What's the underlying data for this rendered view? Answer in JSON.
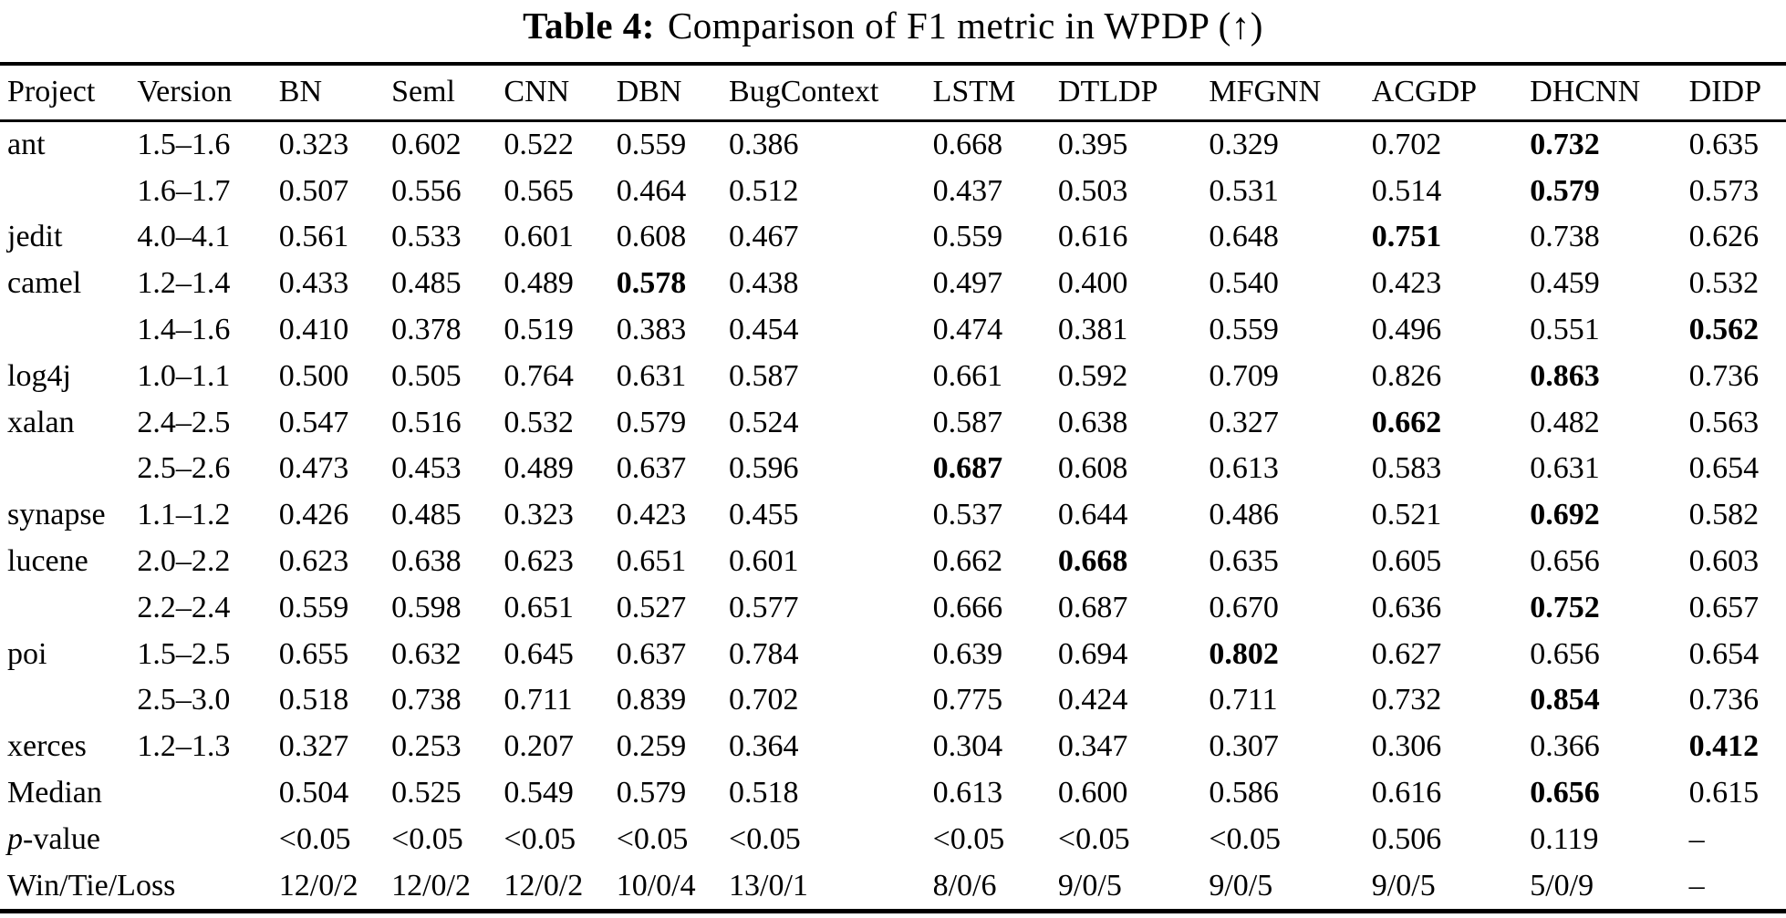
{
  "caption": {
    "label": "Table 4:",
    "text": "Comparison of F1 metric in WPDP (↑)"
  },
  "chart_data": {
    "type": "table",
    "title": "Comparison of F1 metric in WPDP (↑)",
    "columns": [
      "Project",
      "Version",
      "BN",
      "Seml",
      "CNN",
      "DBN",
      "BugContext",
      "LSTM",
      "DTLDP",
      "MFGNN",
      "ACGDP",
      "DHCNN",
      "DIDP"
    ],
    "rows": [
      {
        "project": "ant",
        "version": "1.5–1.6",
        "values": [
          "0.323",
          "0.602",
          "0.522",
          "0.559",
          "0.386",
          "0.668",
          "0.395",
          "0.329",
          "0.702",
          "0.732",
          "0.635"
        ],
        "bold": [
          9
        ]
      },
      {
        "project": "",
        "version": "1.6–1.7",
        "values": [
          "0.507",
          "0.556",
          "0.565",
          "0.464",
          "0.512",
          "0.437",
          "0.503",
          "0.531",
          "0.514",
          "0.579",
          "0.573"
        ],
        "bold": [
          9
        ]
      },
      {
        "project": "jedit",
        "version": "4.0–4.1",
        "values": [
          "0.561",
          "0.533",
          "0.601",
          "0.608",
          "0.467",
          "0.559",
          "0.616",
          "0.648",
          "0.751",
          "0.738",
          "0.626"
        ],
        "bold": [
          8
        ]
      },
      {
        "project": "camel",
        "version": "1.2–1.4",
        "values": [
          "0.433",
          "0.485",
          "0.489",
          "0.578",
          "0.438",
          "0.497",
          "0.400",
          "0.540",
          "0.423",
          "0.459",
          "0.532"
        ],
        "bold": [
          3
        ]
      },
      {
        "project": "",
        "version": "1.4–1.6",
        "values": [
          "0.410",
          "0.378",
          "0.519",
          "0.383",
          "0.454",
          "0.474",
          "0.381",
          "0.559",
          "0.496",
          "0.551",
          "0.562"
        ],
        "bold": [
          10
        ]
      },
      {
        "project": "log4j",
        "version": "1.0–1.1",
        "values": [
          "0.500",
          "0.505",
          "0.764",
          "0.631",
          "0.587",
          "0.661",
          "0.592",
          "0.709",
          "0.826",
          "0.863",
          "0.736"
        ],
        "bold": [
          9
        ]
      },
      {
        "project": "xalan",
        "version": "2.4–2.5",
        "values": [
          "0.547",
          "0.516",
          "0.532",
          "0.579",
          "0.524",
          "0.587",
          "0.638",
          "0.327",
          "0.662",
          "0.482",
          "0.563"
        ],
        "bold": [
          8
        ]
      },
      {
        "project": "",
        "version": "2.5–2.6",
        "values": [
          "0.473",
          "0.453",
          "0.489",
          "0.637",
          "0.596",
          "0.687",
          "0.608",
          "0.613",
          "0.583",
          "0.631",
          "0.654"
        ],
        "bold": [
          5
        ]
      },
      {
        "project": "synapse",
        "version": "1.1–1.2",
        "values": [
          "0.426",
          "0.485",
          "0.323",
          "0.423",
          "0.455",
          "0.537",
          "0.644",
          "0.486",
          "0.521",
          "0.692",
          "0.582"
        ],
        "bold": [
          9
        ]
      },
      {
        "project": "lucene",
        "version": "2.0–2.2",
        "values": [
          "0.623",
          "0.638",
          "0.623",
          "0.651",
          "0.601",
          "0.662",
          "0.668",
          "0.635",
          "0.605",
          "0.656",
          "0.603"
        ],
        "bold": [
          6
        ]
      },
      {
        "project": "",
        "version": "2.2–2.4",
        "values": [
          "0.559",
          "0.598",
          "0.651",
          "0.527",
          "0.577",
          "0.666",
          "0.687",
          "0.670",
          "0.636",
          "0.752",
          "0.657"
        ],
        "bold": [
          9
        ]
      },
      {
        "project": "poi",
        "version": "1.5–2.5",
        "values": [
          "0.655",
          "0.632",
          "0.645",
          "0.637",
          "0.784",
          "0.639",
          "0.694",
          "0.802",
          "0.627",
          "0.656",
          "0.654"
        ],
        "bold": [
          7
        ]
      },
      {
        "project": "",
        "version": "2.5–3.0",
        "values": [
          "0.518",
          "0.738",
          "0.711",
          "0.839",
          "0.702",
          "0.775",
          "0.424",
          "0.711",
          "0.732",
          "0.854",
          "0.736"
        ],
        "bold": [
          9
        ]
      },
      {
        "project": "xerces",
        "version": "1.2–1.3",
        "values": [
          "0.327",
          "0.253",
          "0.207",
          "0.259",
          "0.364",
          "0.304",
          "0.347",
          "0.307",
          "0.306",
          "0.366",
          "0.412"
        ],
        "bold": [
          10
        ]
      },
      {
        "project": "Median",
        "version": "",
        "values": [
          "0.504",
          "0.525",
          "0.549",
          "0.579",
          "0.518",
          "0.613",
          "0.600",
          "0.586",
          "0.616",
          "0.656",
          "0.615"
        ],
        "bold": [
          9
        ]
      },
      {
        "project": "p-value",
        "version": "",
        "italic_first_char": true,
        "values": [
          "<0.05",
          "<0.05",
          "<0.05",
          "<0.05",
          "<0.05",
          "<0.05",
          "<0.05",
          "<0.05",
          "0.506",
          "0.119",
          "–"
        ],
        "bold": []
      },
      {
        "project": "Win/Tie/Loss",
        "version": "",
        "values": [
          "12/0/2",
          "12/0/2",
          "12/0/2",
          "10/0/4",
          "13/0/1",
          "8/0/6",
          "9/0/5",
          "9/0/5",
          "9/0/5",
          "5/0/9",
          "–"
        ],
        "bold": []
      }
    ]
  }
}
